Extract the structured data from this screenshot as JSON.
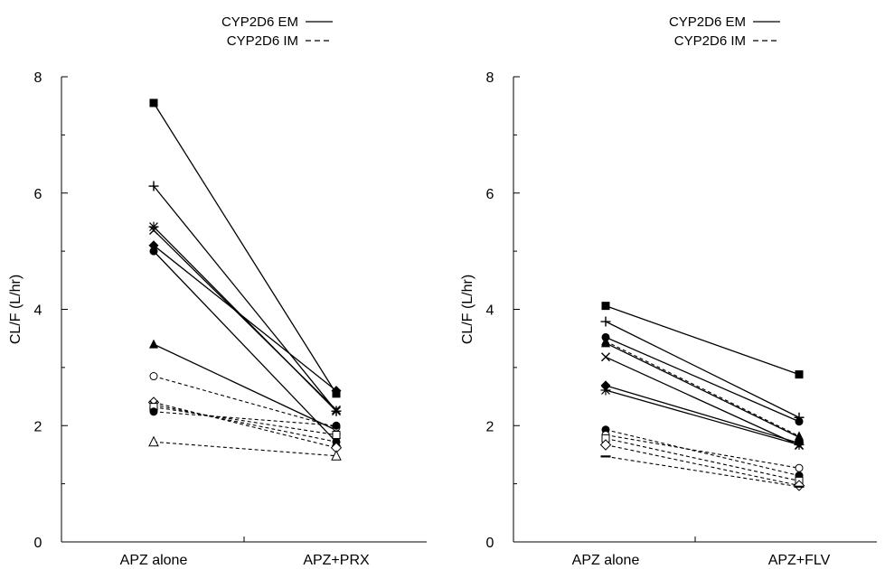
{
  "chart_data": [
    {
      "type": "line",
      "xlabel": "",
      "ylabel": "CL/F (L/hr)",
      "categories": [
        "APZ  alone",
        "APZ+PRX"
      ],
      "ylim": [
        0,
        8
      ],
      "yticks": [
        0,
        2,
        4,
        6,
        8
      ],
      "legend": {
        "position": "top-right",
        "entries": [
          {
            "label": "CYP2D6 EM",
            "style": "solid"
          },
          {
            "label": "CYP2D6 IM",
            "style": "dashed"
          }
        ]
      },
      "series": [
        {
          "group": "EM",
          "marker": "square-filled",
          "values": [
            7.55,
            2.55
          ]
        },
        {
          "group": "EM",
          "marker": "plus",
          "values": [
            6.12,
            2.25
          ]
        },
        {
          "group": "EM",
          "marker": "asterisk",
          "values": [
            5.42,
            2.25
          ]
        },
        {
          "group": "EM",
          "marker": "x",
          "values": [
            5.36,
            2.27
          ]
        },
        {
          "group": "EM",
          "marker": "diamond-filled",
          "values": [
            5.1,
            2.6
          ]
        },
        {
          "group": "EM",
          "marker": "circle-filled",
          "values": [
            5.0,
            1.72
          ]
        },
        {
          "group": "EM",
          "marker": "triangle-filled",
          "values": [
            3.4,
            1.92
          ]
        },
        {
          "group": "IM",
          "marker": "circle-open",
          "values": [
            2.85,
            1.97
          ]
        },
        {
          "group": "IM",
          "marker": "diamond-open",
          "values": [
            2.4,
            1.62
          ]
        },
        {
          "group": "IM",
          "marker": "x",
          "values": [
            2.36,
            1.72
          ]
        },
        {
          "group": "IM",
          "marker": "square-open",
          "values": [
            2.32,
            1.84
          ]
        },
        {
          "group": "IM",
          "marker": "circle-filled",
          "values": [
            2.24,
            2.0
          ]
        },
        {
          "group": "IM",
          "marker": "triangle-open",
          "values": [
            1.72,
            1.48
          ]
        }
      ]
    },
    {
      "type": "line",
      "xlabel": "",
      "ylabel": "CL/F (L/hr)",
      "categories": [
        "APZ  alone",
        "APZ+FLV"
      ],
      "ylim": [
        0,
        8
      ],
      "yticks": [
        0,
        2,
        4,
        6,
        8
      ],
      "legend": {
        "position": "top-right",
        "entries": [
          {
            "label": "CYP2D6 EM",
            "style": "solid"
          },
          {
            "label": "CYP2D6 IM",
            "style": "dashed"
          }
        ]
      },
      "series": [
        {
          "group": "EM",
          "marker": "square-filled",
          "values": [
            4.06,
            2.88
          ]
        },
        {
          "group": "EM",
          "marker": "plus",
          "values": [
            3.79,
            2.14
          ]
        },
        {
          "group": "EM",
          "marker": "circle-filled",
          "values": [
            3.52,
            2.07
          ]
        },
        {
          "group": "EM",
          "marker": "triangle-filled",
          "values": [
            3.42,
            1.8
          ]
        },
        {
          "group": "EM",
          "marker": "x",
          "values": [
            3.18,
            1.66
          ]
        },
        {
          "group": "EM",
          "marker": "diamond-filled",
          "values": [
            2.69,
            1.7
          ]
        },
        {
          "group": "EM",
          "marker": "asterisk",
          "values": [
            2.61,
            1.67
          ]
        },
        {
          "group": "IM",
          "marker": "triangle-filled",
          "values": [
            3.45,
            1.82
          ]
        },
        {
          "group": "IM",
          "marker": "circle-filled",
          "values": [
            1.93,
            1.14
          ]
        },
        {
          "group": "IM",
          "marker": "circle-open",
          "values": [
            1.84,
            1.27
          ]
        },
        {
          "group": "IM",
          "marker": "square-open",
          "values": [
            1.78,
            1.05
          ]
        },
        {
          "group": "IM",
          "marker": "diamond-open",
          "values": [
            1.67,
            0.97
          ]
        },
        {
          "group": "IM",
          "marker": "dash",
          "values": [
            1.47,
            0.95
          ]
        }
      ]
    }
  ]
}
